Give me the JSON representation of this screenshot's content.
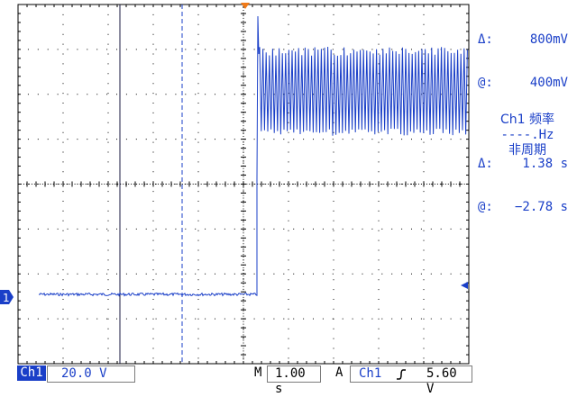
{
  "cursor_readout": {
    "delta_v_symbol": "Δ:",
    "delta_v": "800mV",
    "at_v_symbol": "@:",
    "at_v": "400mV",
    "delta_t_symbol": "Δ:",
    "delta_t": "1.38 s",
    "at_t_symbol": "@:",
    "at_t": "−2.78 s"
  },
  "measurement": {
    "title": "Ch1 频率",
    "value": "----.Hz",
    "status": "非周期"
  },
  "status_bar": {
    "channel": "Ch1",
    "volts_per_div": "20.0 V",
    "timebase_label": "M",
    "timebase": "1.00 s",
    "trigger_label": "A",
    "trigger_source": "Ch1",
    "trigger_slope_icon": "rising-edge-icon",
    "trigger_level": "5.60 V"
  },
  "channel_marker": "1",
  "colors": {
    "trace": "#1a3fc8",
    "grid": "#000000",
    "trigger_marker": "#f07a18"
  }
}
